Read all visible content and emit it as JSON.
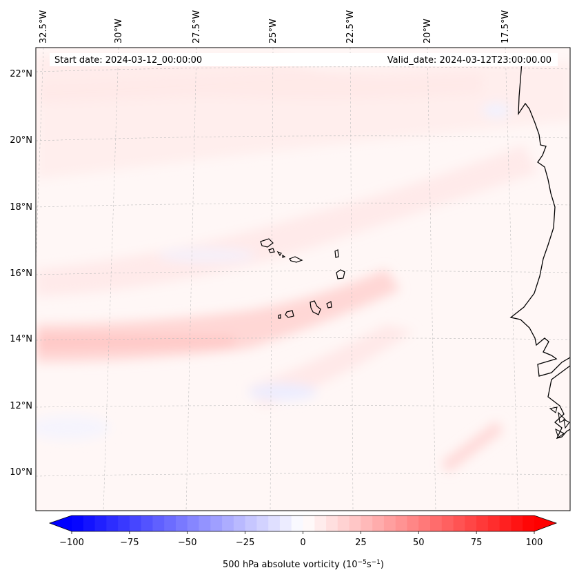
{
  "map": {
    "start_date": "Start date: 2024-03-12_00:00:00",
    "valid_date": "Valid_date: 2024-03-12T23:00:00.00",
    "lon_labels": [
      "32.5°W",
      "30°W",
      "27.5°W",
      "25°W",
      "22.5°W",
      "20°W",
      "17.5°W"
    ],
    "lat_labels": [
      "22°N",
      "20°N",
      "18°N",
      "16°N",
      "14°N",
      "12°N",
      "10°N"
    ]
  },
  "colorbar": {
    "label_prefix": "500 hPa absolute vorticity (10",
    "label_exp1": "−5",
    "label_mid": "s",
    "label_exp2": "−1",
    "label_suffix": ")",
    "tick_labels": [
      "−100",
      "−75",
      "−50",
      "−25",
      "0",
      "25",
      "50",
      "75",
      "100"
    ],
    "ticks": [
      -100,
      -75,
      -50,
      -25,
      0,
      25,
      50,
      75,
      100
    ],
    "vmin": -100,
    "vmax": 100,
    "levels": 40,
    "colors": {
      "low": "#0000ff",
      "mid": "#ffffff",
      "high": "#ff0000"
    }
  }
}
